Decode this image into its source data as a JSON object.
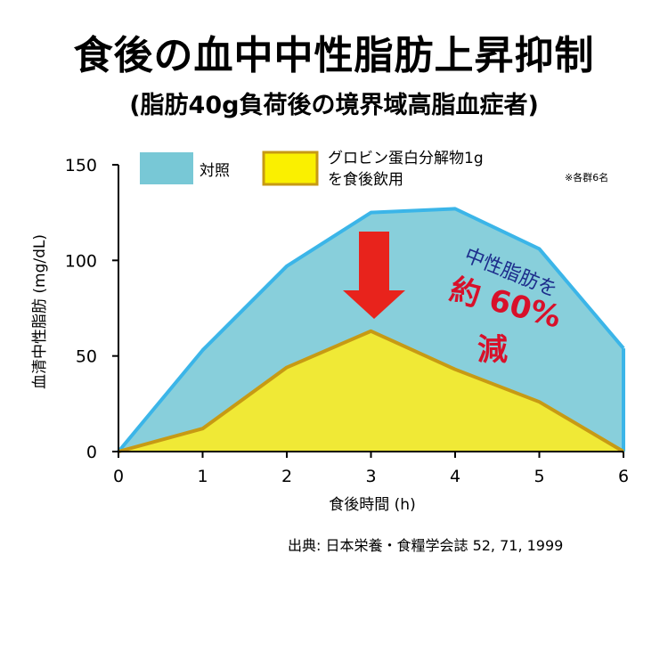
{
  "title": "食後の血中中性脂肪上昇抑制",
  "subtitle": "(脂肪40g負荷後の境界域高脂血症者)",
  "note": "※各群6名",
  "source": "出典: 日本栄養・食糧学会誌 52, 71, 1999",
  "annotation": {
    "line1": "中性脂肪を",
    "line2": "約 60%",
    "line3": "減"
  },
  "colors": {
    "control_fill": "#88cfdb",
    "control_line": "#3bb5e8",
    "treatment_fill": "#f0e936",
    "treatment_line": "#c79a14",
    "arrow": "#e8231c",
    "annotation_blue": "#1d2d8c",
    "annotation_red": "#d8102a"
  },
  "chart_data": {
    "type": "area",
    "xlabel": "食後時間 (h)",
    "ylabel": "血清中性脂肪 (mg/dL)",
    "xlim": [
      0,
      6
    ],
    "ylim": [
      0,
      150
    ],
    "x_ticks": [
      "0",
      "1",
      "2",
      "3",
      "4",
      "5",
      "6"
    ],
    "y_ticks": [
      "0",
      "50",
      "100",
      "150"
    ],
    "x": [
      0,
      1,
      2,
      3,
      4,
      5,
      6
    ],
    "legend_placement": "top",
    "series": [
      {
        "name": "対照",
        "values": [
          0,
          53,
          97,
          125,
          127,
          106,
          54
        ]
      },
      {
        "name_line1": "グロビン蛋白分解物1g",
        "name_line2": "を食後飲用",
        "values": [
          0,
          12,
          44,
          63,
          43,
          26,
          0
        ]
      }
    ]
  }
}
